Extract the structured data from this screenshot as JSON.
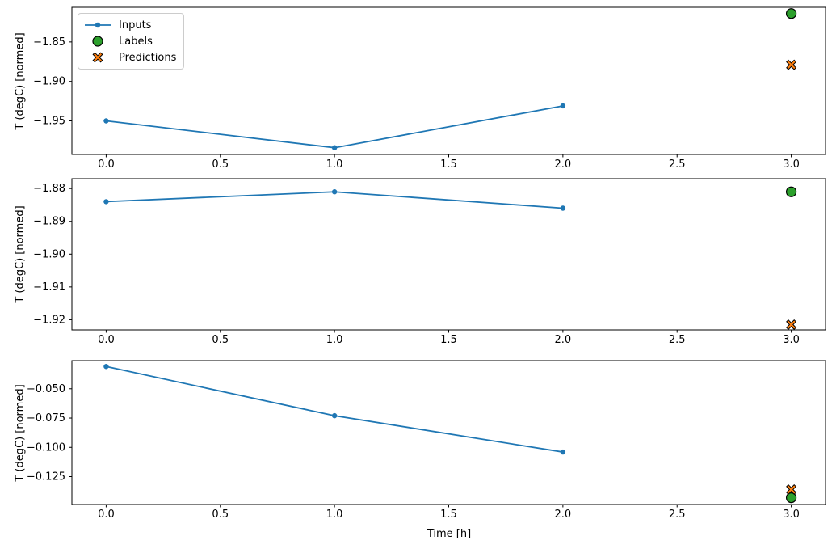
{
  "figure": {
    "background": "#ffffff"
  },
  "colors": {
    "inputs": "#1f77b4",
    "labels": "#2ca02c",
    "predictions": "#ff7f0e",
    "marker_edge": "#000000",
    "axis": "#000000",
    "legend_border": "#cccccc"
  },
  "legend": {
    "position": "upper left",
    "entries": [
      {
        "label": "Inputs",
        "marker": "line-with-dot"
      },
      {
        "label": "Labels",
        "marker": "circle"
      },
      {
        "label": "Predictions",
        "marker": "X"
      }
    ]
  },
  "chart_data": [
    {
      "type": "line",
      "title": "",
      "xlabel": "",
      "ylabel": "T (degC) [normed]",
      "grid": false,
      "xlim": [
        -0.15,
        3.15
      ],
      "ylim": [
        -1.9925,
        -1.8061
      ],
      "x_ticks": {
        "values": [
          0.0,
          0.5,
          1.0,
          1.5,
          2.0,
          2.5,
          3.0
        ],
        "labels": [
          "0.0",
          "0.5",
          "1.0",
          "1.5",
          "2.0",
          "2.5",
          "3.0"
        ]
      },
      "y_ticks": {
        "values": [
          -1.85,
          -1.9,
          -1.95
        ],
        "labels": [
          "−1.85",
          "−1.90",
          "−1.95"
        ]
      },
      "series": [
        {
          "name": "Inputs",
          "kind": "line",
          "x": [
            0,
            1,
            2
          ],
          "y": [
            -1.95,
            -1.984,
            -1.931
          ]
        },
        {
          "name": "Labels",
          "kind": "scatter",
          "marker": "circle",
          "x": [
            3
          ],
          "y": [
            -1.814
          ]
        },
        {
          "name": "Predictions",
          "kind": "scatter",
          "marker": "X",
          "x": [
            3
          ],
          "y": [
            -1.879
          ]
        }
      ]
    },
    {
      "type": "line",
      "title": "",
      "xlabel": "",
      "ylabel": "T (degC) [normed]",
      "grid": false,
      "xlim": [
        -0.15,
        3.15
      ],
      "ylim": [
        -1.9231,
        -1.877
      ],
      "x_ticks": {
        "values": [
          0.0,
          0.5,
          1.0,
          1.5,
          2.0,
          2.5,
          3.0
        ],
        "labels": [
          "0.0",
          "0.5",
          "1.0",
          "1.5",
          "2.0",
          "2.5",
          "3.0"
        ]
      },
      "y_ticks": {
        "values": [
          -1.88,
          -1.89,
          -1.9,
          -1.91,
          -1.92
        ],
        "labels": [
          "−1.88",
          "−1.89",
          "−1.90",
          "−1.91",
          "−1.92"
        ]
      },
      "series": [
        {
          "name": "Inputs",
          "kind": "line",
          "x": [
            0,
            1,
            2
          ],
          "y": [
            -1.884,
            -1.881,
            -1.886
          ]
        },
        {
          "name": "Labels",
          "kind": "scatter",
          "marker": "circle",
          "x": [
            3
          ],
          "y": [
            -1.881
          ]
        },
        {
          "name": "Predictions",
          "kind": "scatter",
          "marker": "X",
          "x": [
            3
          ],
          "y": [
            -1.9215
          ]
        }
      ]
    },
    {
      "type": "line",
      "title": "",
      "xlabel": "Time [h]",
      "ylabel": "T (degC) [normed]",
      "grid": false,
      "xlim": [
        -0.15,
        3.15
      ],
      "ylim": [
        -0.1488,
        -0.026
      ],
      "x_ticks": {
        "values": [
          0.0,
          0.5,
          1.0,
          1.5,
          2.0,
          2.5,
          3.0
        ],
        "labels": [
          "0.0",
          "0.5",
          "1.0",
          "1.5",
          "2.0",
          "2.5",
          "3.0"
        ]
      },
      "y_ticks": {
        "values": [
          -0.05,
          -0.075,
          -0.1,
          -0.125
        ],
        "labels": [
          "−0.050",
          "−0.075",
          "−0.100",
          "−0.125"
        ]
      },
      "series": [
        {
          "name": "Inputs",
          "kind": "line",
          "x": [
            0,
            1,
            2
          ],
          "y": [
            -0.031,
            -0.073,
            -0.104
          ]
        },
        {
          "name": "Labels",
          "kind": "scatter",
          "marker": "circle",
          "x": [
            3
          ],
          "y": [
            -0.143
          ]
        },
        {
          "name": "Predictions",
          "kind": "scatter",
          "marker": "X",
          "x": [
            3
          ],
          "y": [
            -0.136
          ]
        }
      ]
    }
  ]
}
